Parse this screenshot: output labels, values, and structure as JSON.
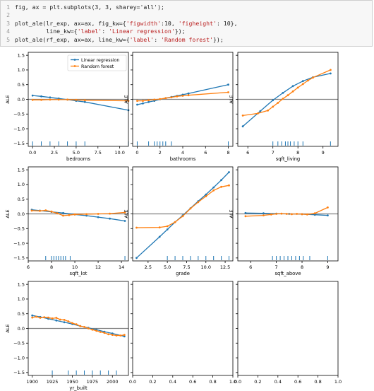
{
  "code_cell": {
    "lines": [
      {
        "num": "1",
        "segments": [
          {
            "t": "fig, ax = plt.subplots(3, 3, sharey='all');",
            "s": false
          }
        ]
      },
      {
        "num": "2",
        "segments": []
      },
      {
        "num": "3",
        "segments": [
          {
            "t": "plot_ale(lr_exp, ax=ax, fig_kw={",
            "s": false
          },
          {
            "t": "'figwidth'",
            "s": true
          },
          {
            "t": ":10, ",
            "s": false
          },
          {
            "t": "'figheight'",
            "s": true
          },
          {
            "t": ": 10},",
            "s": false
          }
        ]
      },
      {
        "num": "4",
        "segments": [
          {
            "t": "         line_kw={",
            "s": false
          },
          {
            "t": "'label'",
            "s": true
          },
          {
            "t": ": ",
            "s": false
          },
          {
            "t": "'Linear regression'",
            "s": true
          },
          {
            "t": "});",
            "s": false
          }
        ]
      },
      {
        "num": "5",
        "segments": [
          {
            "t": "plot_ale(rf_exp, ax=ax, line_kw={",
            "s": false
          },
          {
            "t": "'label'",
            "s": true
          },
          {
            "t": ": ",
            "s": false
          },
          {
            "t": "'Random forest'",
            "s": true
          },
          {
            "t": "});",
            "s": false
          }
        ]
      }
    ]
  },
  "colors": {
    "lr": "#1f77b4",
    "rf": "#ff7f0e",
    "zero_line": "#808080",
    "axes": "#000000"
  },
  "chart_data": [
    {
      "type": "line",
      "xlabel": "bedrooms",
      "ylabel": "ALE",
      "xlim": [
        -0.5,
        11
      ],
      "ylim": [
        -1.6,
        1.6
      ],
      "xticks": [
        "0.0",
        "2.5",
        "5.0",
        "7.5",
        "10.0"
      ],
      "xtick_values": [
        0,
        2.5,
        5,
        7.5,
        10
      ],
      "yticks": [
        "−1.5",
        "−1.0",
        "−0.5",
        "0.0",
        "0.5",
        "1.0",
        "1.5"
      ],
      "ytick_values": [
        -1.5,
        -1.0,
        -0.5,
        0,
        0.5,
        1.0,
        1.5
      ],
      "legend": {
        "position": "upper-right",
        "entries": [
          "Linear regression",
          "Random forest"
        ]
      },
      "series": [
        {
          "name": "Linear regression",
          "x": [
            0,
            1,
            2,
            3,
            4,
            5,
            6,
            11
          ],
          "y": [
            0.13,
            0.1,
            0.065,
            0.03,
            -0.01,
            -0.05,
            -0.09,
            -0.37
          ]
        },
        {
          "name": "Random forest",
          "x": [
            0,
            1,
            2,
            3,
            4,
            5,
            6,
            11
          ],
          "y": [
            -0.02,
            -0.02,
            -0.01,
            -0.01,
            -0.01,
            -0.02,
            -0.03,
            -0.05
          ]
        }
      ],
      "rug": [
        0,
        1,
        2,
        3,
        4,
        5,
        6,
        11
      ]
    },
    {
      "type": "line",
      "xlabel": "bathrooms",
      "ylabel": "ALE",
      "xlim": [
        -0.4,
        8.4
      ],
      "ylim": [
        -1.6,
        1.6
      ],
      "xticks": [
        "0",
        "2",
        "4",
        "6",
        "8"
      ],
      "xtick_values": [
        0,
        2,
        4,
        6,
        8
      ],
      "series": [
        {
          "name": "Linear regression",
          "x": [
            0,
            0.5,
            1,
            1.5,
            2,
            2.5,
            3,
            3.5,
            4,
            4.5,
            8
          ],
          "y": [
            -0.18,
            -0.14,
            -0.09,
            -0.05,
            0.0,
            0.04,
            0.08,
            0.12,
            0.16,
            0.2,
            0.5
          ]
        },
        {
          "name": "Random forest",
          "x": [
            0,
            0.5,
            1,
            1.5,
            2,
            2.5,
            3,
            3.5,
            4,
            4.5,
            8
          ],
          "y": [
            -0.05,
            -0.05,
            -0.03,
            -0.01,
            0.01,
            0.04,
            0.07,
            0.1,
            0.12,
            0.14,
            0.24
          ]
        }
      ],
      "rug": [
        0,
        1,
        1.5,
        1.75,
        2,
        2.25,
        2.5,
        3,
        8
      ]
    },
    {
      "type": "line",
      "xlabel": "sqft_living",
      "ylabel": "ALE",
      "xlim": [
        5.6,
        9.6
      ],
      "ylim": [
        -1.6,
        1.6
      ],
      "xticks": [
        "6",
        "7",
        "8",
        "9"
      ],
      "xtick_values": [
        6,
        7,
        8,
        9
      ],
      "series": [
        {
          "name": "Linear regression",
          "x": [
            5.8,
            6.5,
            7.0,
            7.4,
            7.8,
            8.2,
            8.6,
            9.3
          ],
          "y": [
            -0.92,
            -0.4,
            -0.03,
            0.22,
            0.45,
            0.62,
            0.75,
            0.88
          ]
        },
        {
          "name": "Random forest",
          "x": [
            5.8,
            6.4,
            6.8,
            7.0,
            7.2,
            7.4,
            7.6,
            7.8,
            8.0,
            8.2,
            8.4,
            8.6,
            9.3
          ],
          "y": [
            -0.55,
            -0.48,
            -0.38,
            -0.25,
            -0.12,
            0.02,
            0.14,
            0.27,
            0.4,
            0.52,
            0.64,
            0.74,
            1.0
          ]
        }
      ],
      "rug": [
        7.0,
        7.2,
        7.35,
        7.5,
        7.6,
        7.7,
        7.85,
        8.0,
        8.2,
        9.3
      ]
    },
    {
      "type": "line",
      "xlabel": "sqft_lot",
      "ylabel": "ALE",
      "xlim": [
        6,
        14.6
      ],
      "ylim": [
        -1.6,
        1.6
      ],
      "xticks": [
        "6",
        "8",
        "10",
        "12",
        "14"
      ],
      "xtick_values": [
        6,
        8,
        10,
        12,
        14
      ],
      "series": [
        {
          "name": "Linear regression",
          "x": [
            6.3,
            7,
            8,
            9,
            10,
            11,
            12,
            13,
            14.3
          ],
          "y": [
            0.14,
            0.11,
            0.07,
            0.03,
            -0.02,
            -0.06,
            -0.11,
            -0.16,
            -0.24
          ]
        },
        {
          "name": "Random forest",
          "x": [
            6.3,
            7,
            7.5,
            8.0,
            8.5,
            9.0,
            9.5,
            10,
            11,
            12,
            13,
            14.3
          ],
          "y": [
            0.11,
            0.1,
            0.12,
            0.08,
            0.02,
            -0.06,
            -0.04,
            -0.02,
            -0.01,
            0.0,
            0.01,
            0.05
          ]
        }
      ],
      "rug": [
        7.5,
        8.0,
        8.2,
        8.4,
        8.6,
        8.8,
        9.0,
        9.2,
        9.6,
        14.3
      ]
    },
    {
      "type": "line",
      "xlabel": "grade",
      "ylabel": "ALE",
      "xlim": [
        0.5,
        13.5
      ],
      "ylim": [
        -1.6,
        1.6
      ],
      "xticks": [
        "2.5",
        "5.0",
        "7.5",
        "10.0",
        "12.5"
      ],
      "xtick_values": [
        2.5,
        5,
        7.5,
        10,
        12.5
      ],
      "series": [
        {
          "name": "Linear regression",
          "x": [
            1,
            4,
            5,
            6,
            7,
            8,
            9,
            10,
            11,
            12,
            13
          ],
          "y": [
            -1.5,
            -0.78,
            -0.53,
            -0.28,
            -0.05,
            0.19,
            0.43,
            0.66,
            0.9,
            1.15,
            1.42
          ]
        },
        {
          "name": "Random forest",
          "x": [
            1,
            4,
            5,
            6,
            7,
            8,
            9,
            10,
            11,
            12,
            13
          ],
          "y": [
            -0.47,
            -0.46,
            -0.42,
            -0.28,
            -0.08,
            0.18,
            0.4,
            0.6,
            0.8,
            0.92,
            0.97
          ]
        }
      ],
      "rug": [
        5,
        6,
        7,
        8,
        9,
        10,
        11,
        12,
        13
      ]
    },
    {
      "type": "line",
      "xlabel": "sqft_above",
      "ylabel": "ALE",
      "xlim": [
        5.5,
        9.4
      ],
      "ylim": [
        -1.6,
        1.6
      ],
      "xticks": [
        "6",
        "7",
        "8",
        "9"
      ],
      "xtick_values": [
        6,
        7,
        8,
        9
      ],
      "series": [
        {
          "name": "Linear regression",
          "x": [
            5.8,
            6.5,
            7.0,
            7.5,
            8.0,
            8.5,
            9.0
          ],
          "y": [
            0.03,
            0.02,
            0.01,
            0.0,
            -0.01,
            -0.03,
            -0.05
          ]
        },
        {
          "name": "Random forest",
          "x": [
            5.8,
            6.5,
            6.8,
            7.0,
            7.2,
            7.4,
            7.6,
            7.8,
            8.0,
            8.2,
            8.5,
            9.0
          ],
          "y": [
            -0.08,
            -0.05,
            -0.02,
            0.0,
            0.01,
            0.0,
            -0.01,
            0.0,
            -0.01,
            -0.02,
            0.02,
            0.22
          ]
        }
      ],
      "rug": [
        6.85,
        7.0,
        7.15,
        7.3,
        7.45,
        7.6,
        7.75,
        7.9,
        8.05,
        8.3,
        9.0
      ]
    },
    {
      "type": "line",
      "xlabel": "yr_built",
      "ylabel": "ALE",
      "xlim": [
        1895,
        2020
      ],
      "ylim": [
        -1.6,
        1.6
      ],
      "xticks": [
        "1900",
        "1925",
        "1950",
        "1975",
        "2000"
      ],
      "xtick_values": [
        1900,
        1925,
        1950,
        1975,
        2000
      ],
      "series": [
        {
          "name": "Linear regression",
          "x": [
            1900,
            1910,
            1920,
            1930,
            1940,
            1950,
            1960,
            1970,
            1980,
            1990,
            2000,
            2015
          ],
          "y": [
            0.44,
            0.39,
            0.33,
            0.27,
            0.21,
            0.15,
            0.08,
            0.02,
            -0.04,
            -0.11,
            -0.17,
            -0.27
          ]
        },
        {
          "name": "Random forest",
          "x": [
            1900,
            1905,
            1910,
            1915,
            1920,
            1925,
            1930,
            1935,
            1940,
            1945,
            1950,
            1955,
            1960,
            1965,
            1970,
            1975,
            1980,
            1985,
            1990,
            1995,
            2000,
            2005,
            2010,
            2015
          ],
          "y": [
            0.37,
            0.4,
            0.36,
            0.38,
            0.37,
            0.34,
            0.36,
            0.3,
            0.29,
            0.24,
            0.18,
            0.14,
            0.08,
            0.05,
            0.0,
            -0.04,
            -0.08,
            -0.12,
            -0.15,
            -0.2,
            -0.22,
            -0.24,
            -0.24,
            -0.22
          ]
        }
      ],
      "rug": [
        1925,
        1945,
        1955,
        1965,
        1975,
        1985,
        1995,
        2005
      ]
    },
    {
      "type": "line",
      "xlabel": "",
      "ylabel": "",
      "xlim": [
        0,
        1
      ],
      "ylim": [
        -1.6,
        1.6
      ],
      "xticks": [
        "0.0",
        "0.2",
        "0.4",
        "0.6",
        "0.8",
        "1.0"
      ],
      "xtick_values": [
        0,
        0.2,
        0.4,
        0.6,
        0.8,
        1.0
      ],
      "series": [],
      "rug": []
    },
    {
      "type": "line",
      "xlabel": "",
      "ylabel": "",
      "xlim": [
        0,
        1
      ],
      "ylim": [
        -1.6,
        1.6
      ],
      "xticks": [
        "0.0",
        "0.2",
        "0.4",
        "0.6",
        "0.8",
        "1.0"
      ],
      "xtick_values": [
        0,
        0.2,
        0.4,
        0.6,
        0.8,
        1.0
      ],
      "series": [],
      "rug": []
    }
  ]
}
